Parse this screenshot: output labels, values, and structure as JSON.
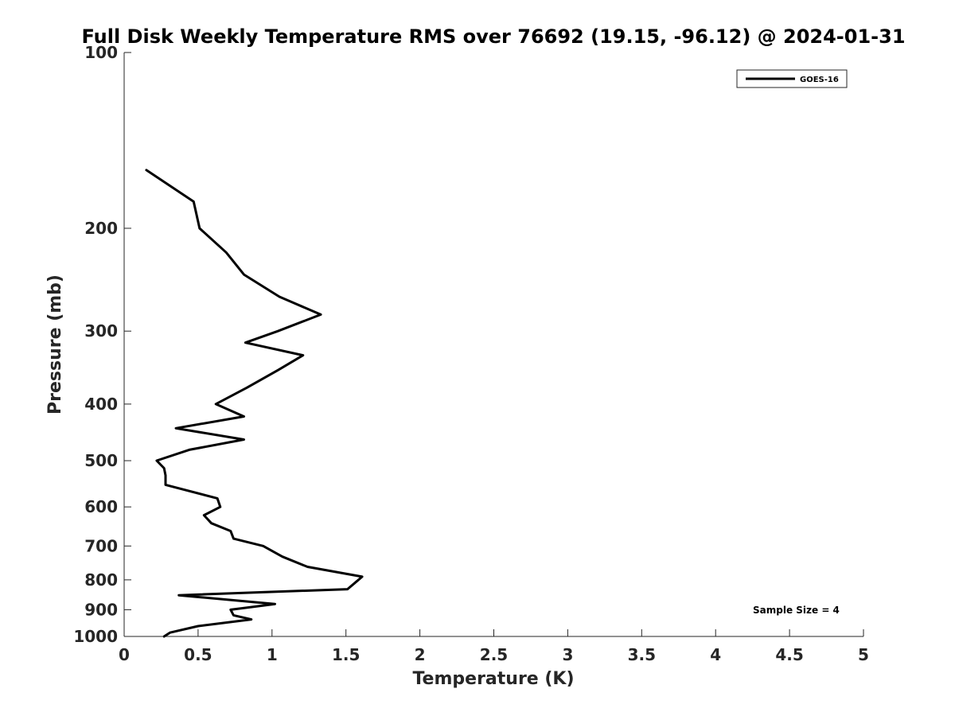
{
  "chart_data": {
    "type": "line",
    "title": "Full Disk Weekly Temperature RMS over 76692 (19.15, -96.12) @ 2024-01-31",
    "xlabel": "Temperature (K)",
    "ylabel": "Pressure (mb)",
    "xlim": [
      0,
      5
    ],
    "ylim": [
      100,
      1000
    ],
    "y_scale": "log",
    "y_reversed": true,
    "grid": false,
    "legend_position": "top-right",
    "x_ticks": [
      0,
      0.5,
      1,
      1.5,
      2,
      2.5,
      3,
      3.5,
      4,
      4.5,
      5
    ],
    "x_tick_labels": [
      "0",
      "0.5",
      "1",
      "1.5",
      "2",
      "2.5",
      "3",
      "3.5",
      "4",
      "4.5",
      "5"
    ],
    "y_ticks": [
      100,
      200,
      300,
      400,
      500,
      600,
      700,
      800,
      900,
      1000
    ],
    "y_tick_labels": [
      "100",
      "200",
      "300",
      "400",
      "500",
      "600",
      "700",
      "800",
      "900",
      "1000"
    ],
    "series": [
      {
        "name": "GOES-16",
        "color": "#000000",
        "x": [
          0.15,
          0.47,
          0.51,
          0.69,
          0.81,
          1.05,
          1.33,
          1.04,
          0.82,
          1.21,
          1.04,
          0.83,
          0.62,
          0.81,
          0.35,
          0.81,
          0.44,
          0.22,
          0.27,
          0.28,
          0.28,
          0.63,
          0.65,
          0.54,
          0.59,
          0.72,
          0.74,
          0.94,
          1.07,
          1.24,
          1.61,
          1.56,
          1.51,
          0.37,
          1.02,
          0.72,
          0.74,
          0.86,
          0.5,
          0.31,
          0.27
        ],
        "y": [
          159,
          180,
          200,
          220,
          240,
          262,
          281,
          300,
          314,
          330,
          350,
          375,
          400,
          420,
          440,
          460,
          479,
          500,
          515,
          530,
          550,
          580,
          600,
          620,
          640,
          660,
          680,
          700,
          730,
          760,
          790,
          810,
          830,
          850,
          880,
          900,
          920,
          935,
          960,
          985,
          1000
        ]
      }
    ],
    "annotations": [
      "Sample Size = 4"
    ]
  }
}
